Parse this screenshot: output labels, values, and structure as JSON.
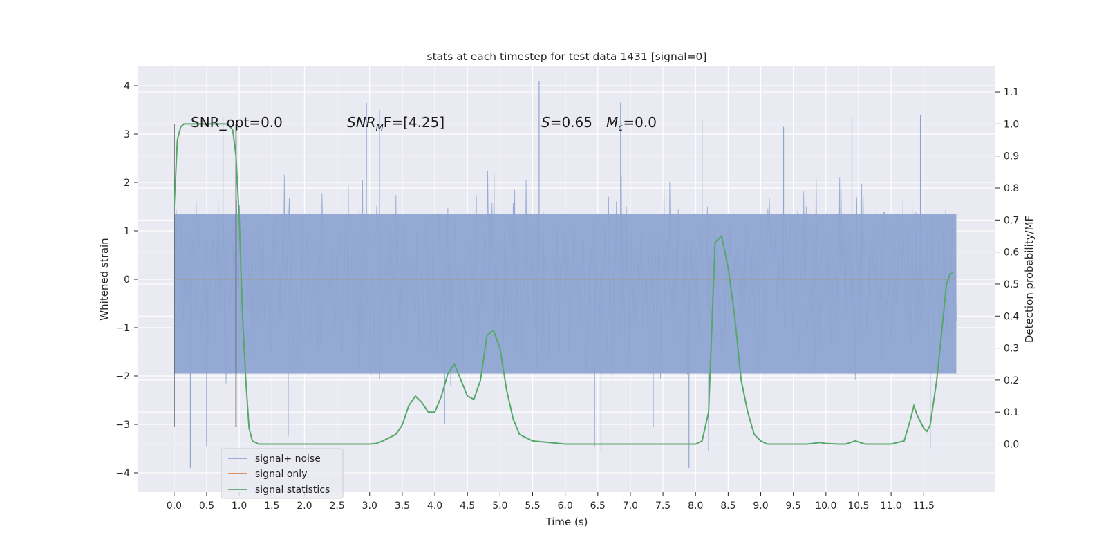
{
  "chart_data": {
    "type": "line",
    "title": "stats at each timestep for test data 1431 [signal=0]",
    "xlabel": "Time (s)",
    "ylabel": "Whitened strain",
    "y2label": "Detection probability/MF",
    "xlim": [
      -0.55,
      12.6
    ],
    "ylim": [
      -4.4,
      4.4
    ],
    "y2lim": [
      -0.15,
      1.18
    ],
    "x_ticks": [
      "0.0",
      "0.5",
      "1.0",
      "1.5",
      "2.0",
      "2.5",
      "3.0",
      "3.5",
      "4.0",
      "4.5",
      "5.0",
      "5.5",
      "6.0",
      "6.5",
      "7.0",
      "7.5",
      "8.0",
      "8.5",
      "9.0",
      "9.5",
      "10.0",
      "10.5",
      "11.0",
      "11.5"
    ],
    "y_ticks": [
      "4",
      "3",
      "2",
      "1",
      "0",
      "−1",
      "−2",
      "−3",
      "−4"
    ],
    "y2_ticks": [
      "1.1",
      "1.0",
      "0.9",
      "0.8",
      "0.7",
      "0.6",
      "0.5",
      "0.4",
      "0.3",
      "0.2",
      "0.1",
      "0.0"
    ],
    "grid": true,
    "legend_position": "lower-left",
    "annotations": {
      "snr_opt": "SNR_opt=0.0",
      "snr_mf_main": "SNR",
      "snr_mf_sub": "M",
      "snr_mf_rest": "F=[4.25]",
      "s_main": "S",
      "s_rest": "=0.65",
      "mc_main": "M",
      "mc_sub": "c",
      "mc_rest": "=0.0"
    },
    "vertical_lines_x": [
      0.0,
      0.95
    ],
    "series": [
      {
        "name": "signal+ noise",
        "color": "#8fa5d1",
        "x_range": [
          0.0,
          12.0
        ],
        "band": [
          -1.95,
          1.35
        ],
        "extreme_peaks": [
          {
            "x": 0.75,
            "y": 3.35
          },
          {
            "x": 2.95,
            "y": 3.65
          },
          {
            "x": 3.15,
            "y": 3.5
          },
          {
            "x": 5.6,
            "y": 4.1
          },
          {
            "x": 6.85,
            "y": 3.65
          },
          {
            "x": 8.1,
            "y": 3.3
          },
          {
            "x": 10.4,
            "y": 3.35
          },
          {
            "x": 11.45,
            "y": 3.4
          },
          {
            "x": 9.35,
            "y": 3.15
          },
          {
            "x": 0.25,
            "y": -3.9
          },
          {
            "x": 0.5,
            "y": -3.35
          },
          {
            "x": 0.5,
            "y": -3.45
          },
          {
            "x": 1.75,
            "y": -3.25
          },
          {
            "x": 6.45,
            "y": -3.45
          },
          {
            "x": 6.55,
            "y": -3.6
          },
          {
            "x": 7.9,
            "y": -3.9
          },
          {
            "x": 8.2,
            "y": -3.55
          },
          {
            "x": 11.6,
            "y": -3.5
          },
          {
            "x": 4.15,
            "y": -3.0
          },
          {
            "x": 7.35,
            "y": -3.05
          }
        ]
      },
      {
        "name": "signal only",
        "color": "#dd8452",
        "x": [
          0.0,
          12.0
        ],
        "y": [
          0.0,
          0.0
        ]
      },
      {
        "name": "signal statistics",
        "color": "#55a868",
        "axis": "right",
        "x": [
          0.0,
          0.05,
          0.1,
          0.15,
          0.2,
          0.3,
          0.4,
          0.5,
          0.6,
          0.7,
          0.8,
          0.85,
          0.9,
          0.95,
          1.0,
          1.05,
          1.1,
          1.15,
          1.2,
          1.3,
          1.5,
          2.0,
          2.5,
          3.0,
          3.1,
          3.2,
          3.3,
          3.4,
          3.5,
          3.6,
          3.7,
          3.8,
          3.9,
          4.0,
          4.1,
          4.2,
          4.3,
          4.4,
          4.5,
          4.6,
          4.7,
          4.8,
          4.9,
          5.0,
          5.1,
          5.2,
          5.3,
          5.5,
          6.0,
          6.5,
          7.0,
          7.5,
          8.0,
          8.1,
          8.2,
          8.3,
          8.35,
          8.4,
          8.45,
          8.5,
          8.6,
          8.7,
          8.8,
          8.9,
          9.0,
          9.1,
          9.3,
          9.5,
          9.7,
          9.8,
          9.9,
          10.0,
          10.2,
          10.3,
          10.45,
          10.6,
          10.8,
          11.0,
          11.2,
          11.3,
          11.35,
          11.4,
          11.5,
          11.55,
          11.6,
          11.7,
          11.8,
          11.85,
          11.9,
          11.95
        ],
        "y": [
          0.74,
          0.95,
          0.99,
          1.0,
          1.0,
          1.0,
          1.0,
          1.0,
          1.0,
          1.0,
          1.0,
          0.995,
          0.98,
          0.9,
          0.7,
          0.4,
          0.2,
          0.05,
          0.01,
          0.0,
          0.0,
          0.0,
          0.0,
          0.0,
          0.002,
          0.01,
          0.02,
          0.03,
          0.06,
          0.12,
          0.15,
          0.13,
          0.1,
          0.1,
          0.15,
          0.22,
          0.25,
          0.2,
          0.15,
          0.14,
          0.2,
          0.34,
          0.355,
          0.3,
          0.17,
          0.08,
          0.03,
          0.01,
          0.0,
          0.0,
          0.0,
          0.0,
          0.0,
          0.01,
          0.1,
          0.63,
          0.64,
          0.65,
          0.6,
          0.55,
          0.4,
          0.2,
          0.1,
          0.03,
          0.01,
          0.0,
          0.0,
          0.0,
          0.0,
          0.002,
          0.005,
          0.002,
          0.0,
          0.0,
          0.01,
          0.0,
          0.0,
          0.0,
          0.01,
          0.08,
          0.12,
          0.09,
          0.05,
          0.04,
          0.06,
          0.2,
          0.4,
          0.5,
          0.53,
          0.535
        ]
      }
    ]
  }
}
